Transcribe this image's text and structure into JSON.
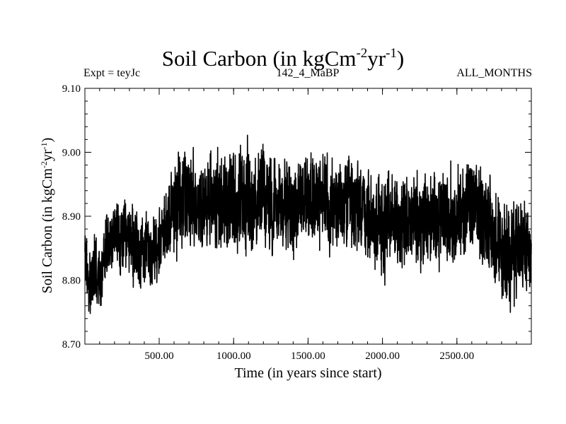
{
  "chart_data": {
    "type": "line",
    "title": "Soil Carbon (in kgCm",
    "title_sup_1": "-2",
    "title_mid": "yr",
    "title_sup_2": "-1",
    "title_end": ")",
    "subtitle_left": "Expt = teyJc",
    "subtitle_center": "142_4_MaBP",
    "subtitle_right": "ALL_MONTHS",
    "xlabel": "Time (in years since start)",
    "ylabel": "Soil Carbon (in kgCm",
    "ylabel_sup_1": "-2",
    "ylabel_mid": "yr",
    "ylabel_sup_2": "-1",
    "ylabel_end": ")",
    "xlim": [
      1,
      3000
    ],
    "ylim": [
      8.7,
      9.1
    ],
    "xticks": [
      {
        "value": 500,
        "label": "500.00"
      },
      {
        "value": 1000,
        "label": "1000.00"
      },
      {
        "value": 1500,
        "label": "1500.00"
      },
      {
        "value": 2000,
        "label": "2000.00"
      },
      {
        "value": 2500,
        "label": "2500.00"
      }
    ],
    "yticks": [
      {
        "value": 8.7,
        "label": "8.70"
      },
      {
        "value": 8.8,
        "label": "8.80"
      },
      {
        "value": 8.9,
        "label": "8.90"
      },
      {
        "value": 9.0,
        "label": "9.00"
      },
      {
        "value": 9.1,
        "label": "9.10"
      }
    ],
    "series": [
      {
        "color": "#000000",
        "x": [
          1,
          25,
          50,
          75,
          100,
          125,
          150,
          175,
          200,
          250,
          300,
          350,
          400,
          450,
          500,
          550,
          600,
          650,
          700,
          750,
          800,
          850,
          900,
          950,
          1000,
          1050,
          1100,
          1150,
          1200,
          1250,
          1300,
          1350,
          1400,
          1450,
          1500,
          1550,
          1600,
          1650,
          1700,
          1750,
          1800,
          1850,
          1900,
          1950,
          2000,
          2050,
          2100,
          2150,
          2200,
          2250,
          2300,
          2350,
          2400,
          2450,
          2500,
          2550,
          2600,
          2650,
          2700,
          2750,
          2800,
          2850,
          2900,
          2950,
          3000
        ],
        "y": [
          8.84,
          8.79,
          8.81,
          8.82,
          8.8,
          8.84,
          8.85,
          8.86,
          8.87,
          8.86,
          8.87,
          8.85,
          8.84,
          8.85,
          8.86,
          8.89,
          8.92,
          8.93,
          8.93,
          8.91,
          8.92,
          8.93,
          8.93,
          8.92,
          8.91,
          8.93,
          8.92,
          8.92,
          8.94,
          8.92,
          8.93,
          8.92,
          8.91,
          8.93,
          8.92,
          8.94,
          8.93,
          8.92,
          8.91,
          8.92,
          8.91,
          8.91,
          8.9,
          8.89,
          8.88,
          8.9,
          8.89,
          8.88,
          8.9,
          8.89,
          8.9,
          8.89,
          8.9,
          8.9,
          8.9,
          8.91,
          8.91,
          8.9,
          8.9,
          8.87,
          8.83,
          8.85,
          8.84,
          8.85,
          8.87
        ],
        "amplitude": [
          0.08,
          0.07,
          0.07,
          0.08,
          0.08,
          0.08,
          0.08,
          0.08,
          0.08,
          0.09,
          0.09,
          0.09,
          0.08,
          0.08,
          0.09,
          0.1,
          0.11,
          0.12,
          0.12,
          0.11,
          0.11,
          0.11,
          0.12,
          0.12,
          0.12,
          0.12,
          0.12,
          0.11,
          0.12,
          0.11,
          0.11,
          0.11,
          0.11,
          0.11,
          0.11,
          0.12,
          0.11,
          0.11,
          0.11,
          0.11,
          0.11,
          0.11,
          0.11,
          0.11,
          0.12,
          0.11,
          0.11,
          0.12,
          0.11,
          0.11,
          0.11,
          0.11,
          0.11,
          0.11,
          0.11,
          0.11,
          0.11,
          0.11,
          0.11,
          0.12,
          0.12,
          0.12,
          0.12,
          0.11,
          0.1
        ]
      }
    ],
    "grid": false,
    "legend": "none"
  }
}
